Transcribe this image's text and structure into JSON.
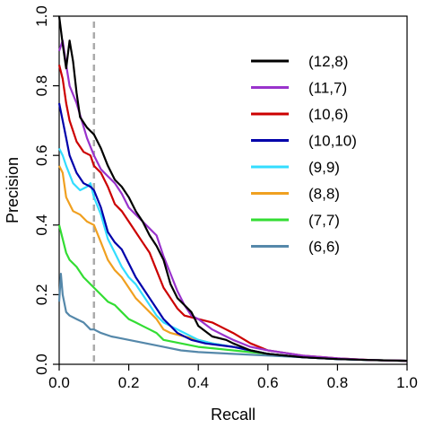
{
  "chart_data": {
    "type": "line",
    "title": "",
    "xlabel": "Recall",
    "ylabel": "Precision",
    "xlim": [
      0,
      1
    ],
    "ylim": [
      0,
      1
    ],
    "x_ticks": [
      "0.0",
      "0.2",
      "0.4",
      "0.6",
      "0.8",
      "1.0"
    ],
    "y_ticks": [
      "0.0",
      "0.2",
      "0.4",
      "0.6",
      "0.8",
      "1.0"
    ],
    "grid": false,
    "legend_position": "top-right",
    "reference_line": {
      "x": 0.1,
      "color": "#aaaaaa",
      "style": "dashed"
    },
    "series": [
      {
        "name": "(12,8)",
        "color": "#000000",
        "points": [
          [
            0.0,
            1.0
          ],
          [
            0.01,
            0.92
          ],
          [
            0.02,
            0.85
          ],
          [
            0.03,
            0.93
          ],
          [
            0.04,
            0.87
          ],
          [
            0.05,
            0.78
          ],
          [
            0.06,
            0.71
          ],
          [
            0.08,
            0.68
          ],
          [
            0.1,
            0.66
          ],
          [
            0.12,
            0.62
          ],
          [
            0.14,
            0.57
          ],
          [
            0.16,
            0.53
          ],
          [
            0.18,
            0.51
          ],
          [
            0.2,
            0.48
          ],
          [
            0.22,
            0.44
          ],
          [
            0.24,
            0.41
          ],
          [
            0.26,
            0.37
          ],
          [
            0.28,
            0.34
          ],
          [
            0.3,
            0.3
          ],
          [
            0.32,
            0.23
          ],
          [
            0.34,
            0.19
          ],
          [
            0.36,
            0.17
          ],
          [
            0.38,
            0.15
          ],
          [
            0.4,
            0.11
          ],
          [
            0.44,
            0.08
          ],
          [
            0.48,
            0.07
          ],
          [
            0.5,
            0.06
          ],
          [
            0.55,
            0.04
          ],
          [
            0.6,
            0.03
          ],
          [
            0.7,
            0.02
          ],
          [
            0.8,
            0.015
          ],
          [
            0.9,
            0.012
          ],
          [
            1.0,
            0.01
          ]
        ]
      },
      {
        "name": "(11,7)",
        "color": "#9933cc",
        "points": [
          [
            0.0,
            0.9
          ],
          [
            0.01,
            0.93
          ],
          [
            0.02,
            0.86
          ],
          [
            0.03,
            0.8
          ],
          [
            0.05,
            0.75
          ],
          [
            0.08,
            0.65
          ],
          [
            0.1,
            0.6
          ],
          [
            0.12,
            0.56
          ],
          [
            0.14,
            0.54
          ],
          [
            0.16,
            0.52
          ],
          [
            0.18,
            0.49
          ],
          [
            0.2,
            0.45
          ],
          [
            0.22,
            0.43
          ],
          [
            0.24,
            0.41
          ],
          [
            0.26,
            0.39
          ],
          [
            0.28,
            0.37
          ],
          [
            0.3,
            0.31
          ],
          [
            0.32,
            0.26
          ],
          [
            0.34,
            0.21
          ],
          [
            0.36,
            0.17
          ],
          [
            0.38,
            0.14
          ],
          [
            0.4,
            0.13
          ],
          [
            0.44,
            0.1
          ],
          [
            0.48,
            0.08
          ],
          [
            0.5,
            0.07
          ],
          [
            0.55,
            0.05
          ],
          [
            0.6,
            0.04
          ],
          [
            0.7,
            0.025
          ],
          [
            0.8,
            0.017
          ],
          [
            0.9,
            0.012
          ],
          [
            1.0,
            0.01
          ]
        ]
      },
      {
        "name": "(10,6)",
        "color": "#cc0000",
        "points": [
          [
            0.0,
            0.86
          ],
          [
            0.01,
            0.82
          ],
          [
            0.02,
            0.75
          ],
          [
            0.03,
            0.7
          ],
          [
            0.05,
            0.64
          ],
          [
            0.07,
            0.61
          ],
          [
            0.09,
            0.6
          ],
          [
            0.1,
            0.57
          ],
          [
            0.12,
            0.55
          ],
          [
            0.14,
            0.51
          ],
          [
            0.16,
            0.46
          ],
          [
            0.18,
            0.44
          ],
          [
            0.2,
            0.41
          ],
          [
            0.22,
            0.38
          ],
          [
            0.24,
            0.35
          ],
          [
            0.26,
            0.32
          ],
          [
            0.28,
            0.27
          ],
          [
            0.3,
            0.22
          ],
          [
            0.32,
            0.19
          ],
          [
            0.34,
            0.16
          ],
          [
            0.36,
            0.14
          ],
          [
            0.4,
            0.13
          ],
          [
            0.44,
            0.12
          ],
          [
            0.48,
            0.1
          ],
          [
            0.5,
            0.09
          ],
          [
            0.55,
            0.06
          ],
          [
            0.6,
            0.04
          ],
          [
            0.7,
            0.025
          ],
          [
            0.8,
            0.017
          ],
          [
            0.9,
            0.012
          ],
          [
            1.0,
            0.01
          ]
        ]
      },
      {
        "name": "(10,10)",
        "color": "#0000aa",
        "points": [
          [
            0.0,
            0.75
          ],
          [
            0.01,
            0.7
          ],
          [
            0.02,
            0.65
          ],
          [
            0.03,
            0.6
          ],
          [
            0.05,
            0.55
          ],
          [
            0.07,
            0.52
          ],
          [
            0.09,
            0.51
          ],
          [
            0.1,
            0.5
          ],
          [
            0.12,
            0.45
          ],
          [
            0.14,
            0.38
          ],
          [
            0.16,
            0.35
          ],
          [
            0.18,
            0.33
          ],
          [
            0.2,
            0.29
          ],
          [
            0.22,
            0.25
          ],
          [
            0.24,
            0.22
          ],
          [
            0.26,
            0.19
          ],
          [
            0.28,
            0.16
          ],
          [
            0.3,
            0.13
          ],
          [
            0.32,
            0.11
          ],
          [
            0.34,
            0.09
          ],
          [
            0.38,
            0.07
          ],
          [
            0.42,
            0.06
          ],
          [
            0.5,
            0.05
          ],
          [
            0.55,
            0.04
          ],
          [
            0.6,
            0.03
          ],
          [
            0.7,
            0.02
          ],
          [
            0.8,
            0.015
          ],
          [
            0.9,
            0.012
          ],
          [
            1.0,
            0.01
          ]
        ]
      },
      {
        "name": "(9,9)",
        "color": "#33ddff",
        "points": [
          [
            0.0,
            0.62
          ],
          [
            0.01,
            0.6
          ],
          [
            0.02,
            0.57
          ],
          [
            0.04,
            0.52
          ],
          [
            0.06,
            0.5
          ],
          [
            0.08,
            0.51
          ],
          [
            0.09,
            0.52
          ],
          [
            0.1,
            0.48
          ],
          [
            0.12,
            0.43
          ],
          [
            0.14,
            0.36
          ],
          [
            0.16,
            0.32
          ],
          [
            0.18,
            0.28
          ],
          [
            0.2,
            0.25
          ],
          [
            0.22,
            0.23
          ],
          [
            0.24,
            0.2
          ],
          [
            0.26,
            0.17
          ],
          [
            0.28,
            0.14
          ],
          [
            0.3,
            0.12
          ],
          [
            0.32,
            0.11
          ],
          [
            0.36,
            0.09
          ],
          [
            0.4,
            0.07
          ],
          [
            0.44,
            0.06
          ],
          [
            0.5,
            0.05
          ],
          [
            0.55,
            0.04
          ],
          [
            0.6,
            0.03
          ],
          [
            0.7,
            0.02
          ],
          [
            0.8,
            0.015
          ],
          [
            0.9,
            0.012
          ],
          [
            1.0,
            0.01
          ]
        ]
      },
      {
        "name": "(8,8)",
        "color": "#f0a020",
        "points": [
          [
            0.0,
            0.57
          ],
          [
            0.01,
            0.55
          ],
          [
            0.02,
            0.48
          ],
          [
            0.03,
            0.46
          ],
          [
            0.04,
            0.44
          ],
          [
            0.06,
            0.43
          ],
          [
            0.08,
            0.41
          ],
          [
            0.1,
            0.4
          ],
          [
            0.12,
            0.35
          ],
          [
            0.14,
            0.3
          ],
          [
            0.16,
            0.27
          ],
          [
            0.18,
            0.25
          ],
          [
            0.2,
            0.22
          ],
          [
            0.22,
            0.19
          ],
          [
            0.24,
            0.17
          ],
          [
            0.26,
            0.15
          ],
          [
            0.28,
            0.13
          ],
          [
            0.3,
            0.1
          ],
          [
            0.32,
            0.09
          ],
          [
            0.36,
            0.08
          ],
          [
            0.4,
            0.07
          ],
          [
            0.44,
            0.06
          ],
          [
            0.5,
            0.05
          ],
          [
            0.55,
            0.04
          ],
          [
            0.6,
            0.03
          ],
          [
            0.7,
            0.02
          ],
          [
            0.8,
            0.015
          ],
          [
            0.9,
            0.012
          ],
          [
            1.0,
            0.01
          ]
        ]
      },
      {
        "name": "(7,7)",
        "color": "#33dd33",
        "points": [
          [
            0.0,
            0.4
          ],
          [
            0.01,
            0.36
          ],
          [
            0.02,
            0.32
          ],
          [
            0.03,
            0.3
          ],
          [
            0.05,
            0.28
          ],
          [
            0.07,
            0.25
          ],
          [
            0.1,
            0.22
          ],
          [
            0.12,
            0.2
          ],
          [
            0.14,
            0.18
          ],
          [
            0.16,
            0.17
          ],
          [
            0.18,
            0.15
          ],
          [
            0.2,
            0.13
          ],
          [
            0.22,
            0.12
          ],
          [
            0.24,
            0.11
          ],
          [
            0.26,
            0.1
          ],
          [
            0.28,
            0.09
          ],
          [
            0.3,
            0.07
          ],
          [
            0.35,
            0.06
          ],
          [
            0.4,
            0.05
          ],
          [
            0.45,
            0.045
          ],
          [
            0.5,
            0.04
          ],
          [
            0.6,
            0.03
          ],
          [
            0.7,
            0.02
          ],
          [
            0.8,
            0.015
          ],
          [
            0.9,
            0.012
          ],
          [
            1.0,
            0.01
          ]
        ]
      },
      {
        "name": "(6,6)",
        "color": "#5588aa",
        "points": [
          [
            0.0,
            0.18
          ],
          [
            0.005,
            0.26
          ],
          [
            0.01,
            0.2
          ],
          [
            0.02,
            0.15
          ],
          [
            0.03,
            0.14
          ],
          [
            0.05,
            0.13
          ],
          [
            0.07,
            0.12
          ],
          [
            0.09,
            0.1
          ],
          [
            0.1,
            0.1
          ],
          [
            0.12,
            0.09
          ],
          [
            0.15,
            0.08
          ],
          [
            0.2,
            0.07
          ],
          [
            0.25,
            0.06
          ],
          [
            0.3,
            0.05
          ],
          [
            0.35,
            0.04
          ],
          [
            0.4,
            0.035
          ],
          [
            0.5,
            0.03
          ],
          [
            0.6,
            0.025
          ],
          [
            0.7,
            0.02
          ],
          [
            0.8,
            0.015
          ],
          [
            0.9,
            0.012
          ],
          [
            1.0,
            0.01
          ]
        ]
      }
    ]
  }
}
